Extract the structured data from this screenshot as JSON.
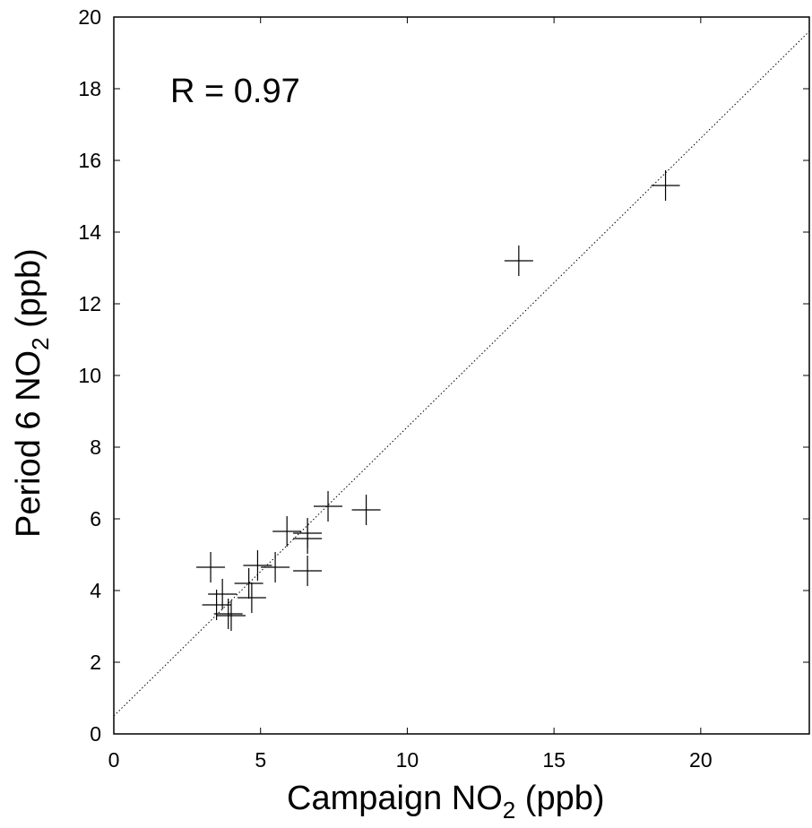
{
  "chart_data": {
    "type": "scatter",
    "title": "",
    "xlabel": {
      "main": "Campaign NO",
      "sub": "2",
      "unit": " (ppb)"
    },
    "ylabel": {
      "main": "Period 6 NO",
      "sub": "2",
      "unit": " (ppb)"
    },
    "xlim": [
      0,
      23.7
    ],
    "ylim": [
      0,
      20
    ],
    "x_ticks": [
      0,
      5,
      10,
      15,
      20
    ],
    "y_ticks": [
      0,
      2,
      4,
      6,
      8,
      10,
      12,
      14,
      16,
      18,
      20
    ],
    "x_tick_labels": [
      "0",
      "5",
      "10",
      "15",
      "20"
    ],
    "y_tick_labels": [
      "0",
      "2",
      "4",
      "6",
      "8",
      "10",
      "12",
      "14",
      "16",
      "18",
      "20"
    ],
    "grid": false,
    "annotation": "R = 0.97",
    "marker": "plus",
    "points": [
      {
        "x": 18.8,
        "y": 15.3
      },
      {
        "x": 13.8,
        "y": 13.2
      },
      {
        "x": 8.6,
        "y": 6.25
      },
      {
        "x": 7.3,
        "y": 6.35
      },
      {
        "x": 6.6,
        "y": 5.6
      },
      {
        "x": 6.6,
        "y": 5.45
      },
      {
        "x": 5.9,
        "y": 5.65
      },
      {
        "x": 6.6,
        "y": 4.55
      },
      {
        "x": 5.5,
        "y": 4.65
      },
      {
        "x": 4.9,
        "y": 4.7
      },
      {
        "x": 4.6,
        "y": 4.2
      },
      {
        "x": 3.3,
        "y": 4.65
      },
      {
        "x": 3.7,
        "y": 3.9
      },
      {
        "x": 4.7,
        "y": 3.8
      },
      {
        "x": 3.5,
        "y": 3.6
      },
      {
        "x": 3.9,
        "y": 3.35
      },
      {
        "x": 4.0,
        "y": 3.3
      }
    ],
    "fit_line": {
      "style": "dotted",
      "from": {
        "x": 0,
        "y": 0.5
      },
      "to": {
        "x": 23.7,
        "y": 19.6
      }
    }
  }
}
